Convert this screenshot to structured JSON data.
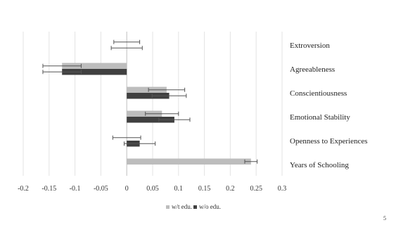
{
  "chart_data": {
    "type": "bar",
    "orientation": "horizontal",
    "title": "",
    "xlabel": "",
    "ylabel": "",
    "categories": [
      "Extroversion",
      "Agreeableness",
      "Conscientiousness",
      "Emotional Stability",
      "Openness to Experiences",
      "Years of Schooling"
    ],
    "series": [
      {
        "name": "w/t edu.",
        "color": "#bdbdbd",
        "values": [
          0.0,
          -0.125,
          0.077,
          0.068,
          0.0,
          0.24
        ],
        "error": [
          0.025,
          0.037,
          0.035,
          0.032,
          0.027,
          0.012
        ]
      },
      {
        "name": "w/o edu.",
        "color": "#404040",
        "values": [
          0.0,
          -0.125,
          0.082,
          0.092,
          0.025,
          null
        ],
        "error": [
          0.03,
          0.037,
          0.033,
          0.03,
          0.03,
          null
        ]
      }
    ],
    "xlim": [
      -0.2,
      0.3
    ],
    "xticks": [
      -0.2,
      -0.15,
      -0.1,
      -0.05,
      0,
      0.05,
      0.1,
      0.15,
      0.2,
      0.25,
      0.3
    ],
    "xtick_labels": [
      "-0.2",
      "-0.15",
      "-0.1",
      "-0.05",
      "0",
      "0.05",
      "0.1",
      "0.15",
      "0.2",
      "0.25",
      "0.3"
    ],
    "grid": "vertical",
    "legend": "bottom-center"
  },
  "page": {
    "number": "5"
  }
}
